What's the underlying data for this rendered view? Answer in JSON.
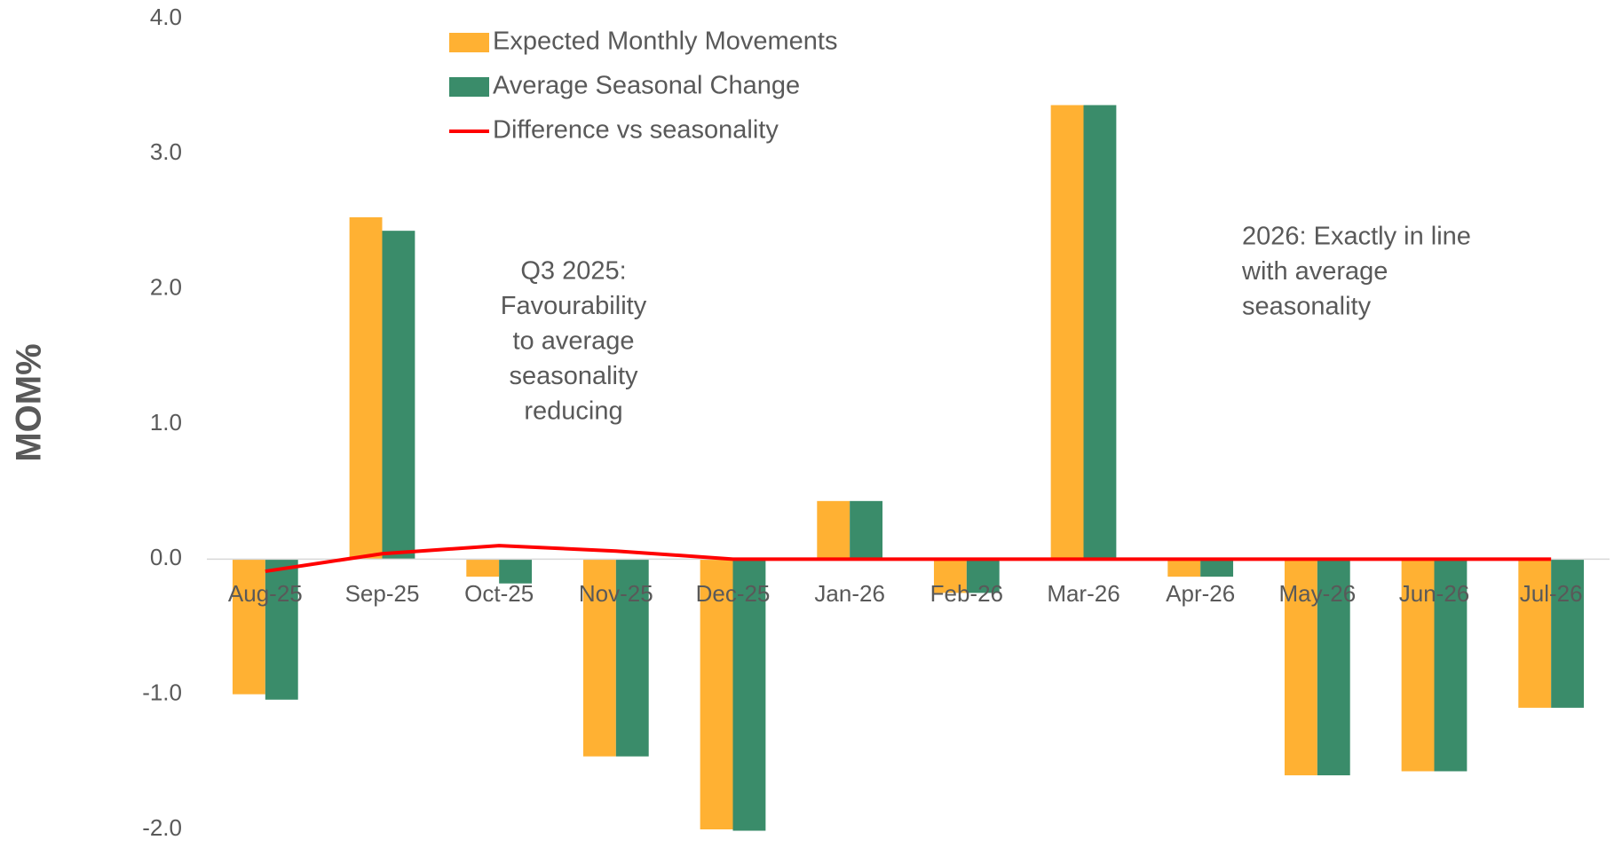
{
  "chart_data": {
    "type": "bar",
    "y_label": "MOM%",
    "categories": [
      "Aug-25",
      "Sep-25",
      "Oct-25",
      "Nov-25",
      "Dec-25",
      "Jan-26",
      "Feb-26",
      "Mar-26",
      "Apr-26",
      "May-26",
      "Jun-26",
      "Jul-26"
    ],
    "series": [
      {
        "name": "Expected Monthly Movements",
        "type": "bar",
        "color": "#FFB133",
        "values": [
          -1.0,
          2.53,
          -0.13,
          -1.46,
          -2.0,
          0.43,
          -0.25,
          3.36,
          -0.13,
          -1.6,
          -1.57,
          -1.1
        ]
      },
      {
        "name": "Average Seasonal Change",
        "type": "bar",
        "color": "#3A8C6A",
        "values": [
          -1.04,
          2.43,
          -0.18,
          -1.46,
          -2.01,
          0.43,
          -0.25,
          3.36,
          -0.13,
          -1.6,
          -1.57,
          -1.1
        ]
      },
      {
        "name": "Difference vs seasonality",
        "type": "line",
        "color": "#FF0000",
        "values": [
          -0.09,
          0.04,
          0.1,
          0.06,
          0,
          0,
          0,
          0,
          0,
          0,
          0,
          0
        ]
      }
    ],
    "ylim": [
      -2.0,
      4.0
    ],
    "yticks": [
      {
        "value": -2,
        "label": "-2.0"
      },
      {
        "value": -1,
        "label": "-1.0"
      },
      {
        "value": 0,
        "label": "0.0"
      },
      {
        "value": 1,
        "label": "1.0"
      },
      {
        "value": 2,
        "label": "2.0"
      },
      {
        "value": 3,
        "label": "3.0"
      },
      {
        "value": 4,
        "label": "4.0"
      }
    ],
    "grid": false,
    "annotations": [
      {
        "lines": [
          "Q3 2025:",
          "Favourability",
          "to average",
          "seasonality",
          "reducing"
        ]
      },
      {
        "lines": [
          "2026: Exactly in line",
          "with average",
          "seasonality"
        ]
      }
    ]
  }
}
